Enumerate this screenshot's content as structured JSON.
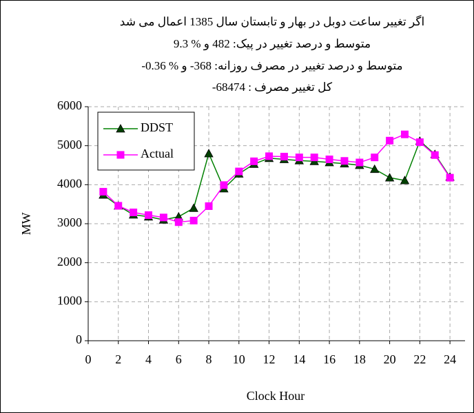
{
  "chart_data": {
    "type": "line",
    "title": [
      "اگر تغییر ساعت دوبل در بهار و تابستان سال 1385 اعمال می شد",
      "متوسط و درصد تغییر در پیک: 482 و % 9.3",
      "متوسط و درصد تغییر در مصرف روزانه: 368- و % 0.36-",
      "کل تغییر مصرف :  68474-"
    ],
    "x_label": "Clock Hour",
    "y_label": "MW",
    "x": [
      1,
      2,
      3,
      4,
      5,
      6,
      7,
      8,
      9,
      10,
      11,
      12,
      13,
      14,
      15,
      16,
      17,
      18,
      19,
      20,
      21,
      22,
      23,
      24
    ],
    "series": [
      {
        "name": "DDST",
        "color": "#008000",
        "marker_color": "#004000",
        "marker": "triangle",
        "values": [
          3740,
          3460,
          3230,
          3180,
          3100,
          3180,
          3400,
          4800,
          3900,
          4280,
          4530,
          4680,
          4650,
          4620,
          4600,
          4570,
          4540,
          4500,
          4400,
          4180,
          4110,
          5120,
          4780,
          4200
        ]
      },
      {
        "name": "Actual",
        "color": "#ff00ff",
        "marker_color": "#ff00ff",
        "marker": "square",
        "values": [
          3820,
          3460,
          3290,
          3220,
          3160,
          3040,
          3080,
          3450,
          3990,
          4340,
          4600,
          4730,
          4720,
          4700,
          4700,
          4650,
          4610,
          4570,
          4700,
          5130,
          5290,
          5090,
          4760,
          4180
        ]
      }
    ],
    "xlim": [
      0,
      25
    ],
    "xticks": [
      0,
      2,
      4,
      6,
      8,
      10,
      12,
      14,
      16,
      18,
      20,
      22,
      24
    ],
    "ylim": [
      0,
      6000
    ],
    "yticks": [
      0,
      1000,
      2000,
      3000,
      4000,
      5000,
      6000
    ],
    "grid": true,
    "legend": "top-left"
  }
}
